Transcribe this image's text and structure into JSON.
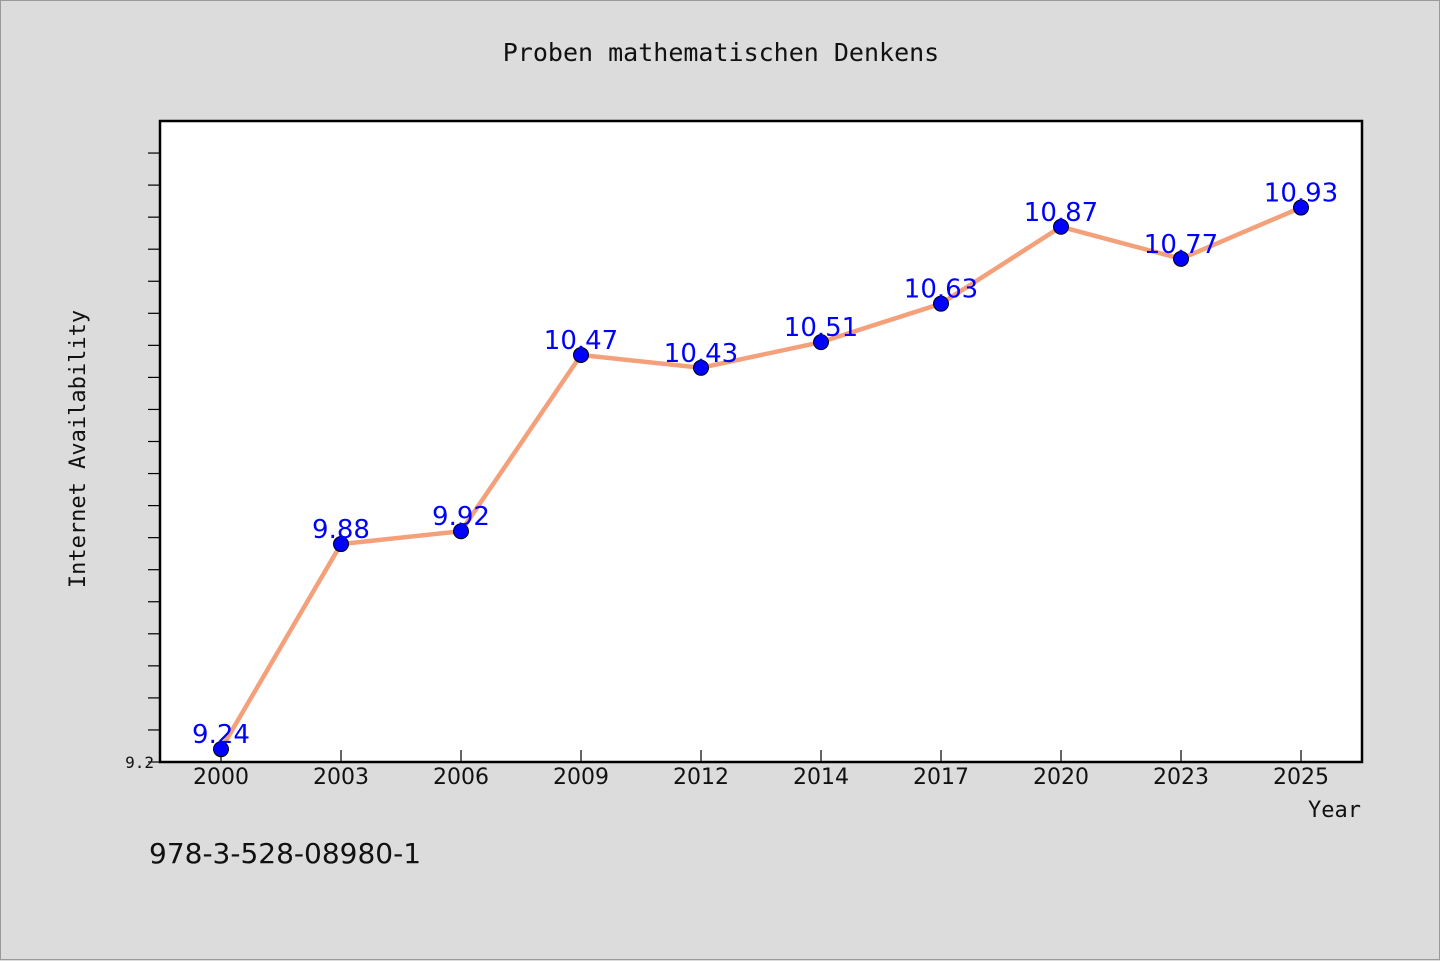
{
  "chart_data": {
    "type": "line",
    "title": "Proben mathematischen Denkens",
    "xlabel": "Year",
    "ylabel": "Internet Availability",
    "categories": [
      "2000",
      "2003",
      "2006",
      "2009",
      "2012",
      "2014",
      "2017",
      "2020",
      "2023",
      "2025"
    ],
    "series": [
      {
        "values": [
          9.24,
          9.88,
          9.92,
          10.47,
          10.43,
          10.51,
          10.63,
          10.87,
          10.77,
          10.93
        ]
      }
    ],
    "data_labels": [
      "9.24",
      "9.88",
      "9.92",
      "10.47",
      "10.43",
      "10.51",
      "10.63",
      "10.87",
      "10.77",
      "10.93"
    ],
    "ylim": [
      9.2,
      11.2
    ],
    "y_tick_interval": 0.1,
    "y_tick_labels": [
      {
        "value": 9.2,
        "label": "9.2"
      }
    ],
    "grid": false,
    "line_color": "#f4a07a",
    "marker_color": "#0000ff",
    "label_color": "#0000ff"
  },
  "footer_text": "978-3-528-08980-1"
}
